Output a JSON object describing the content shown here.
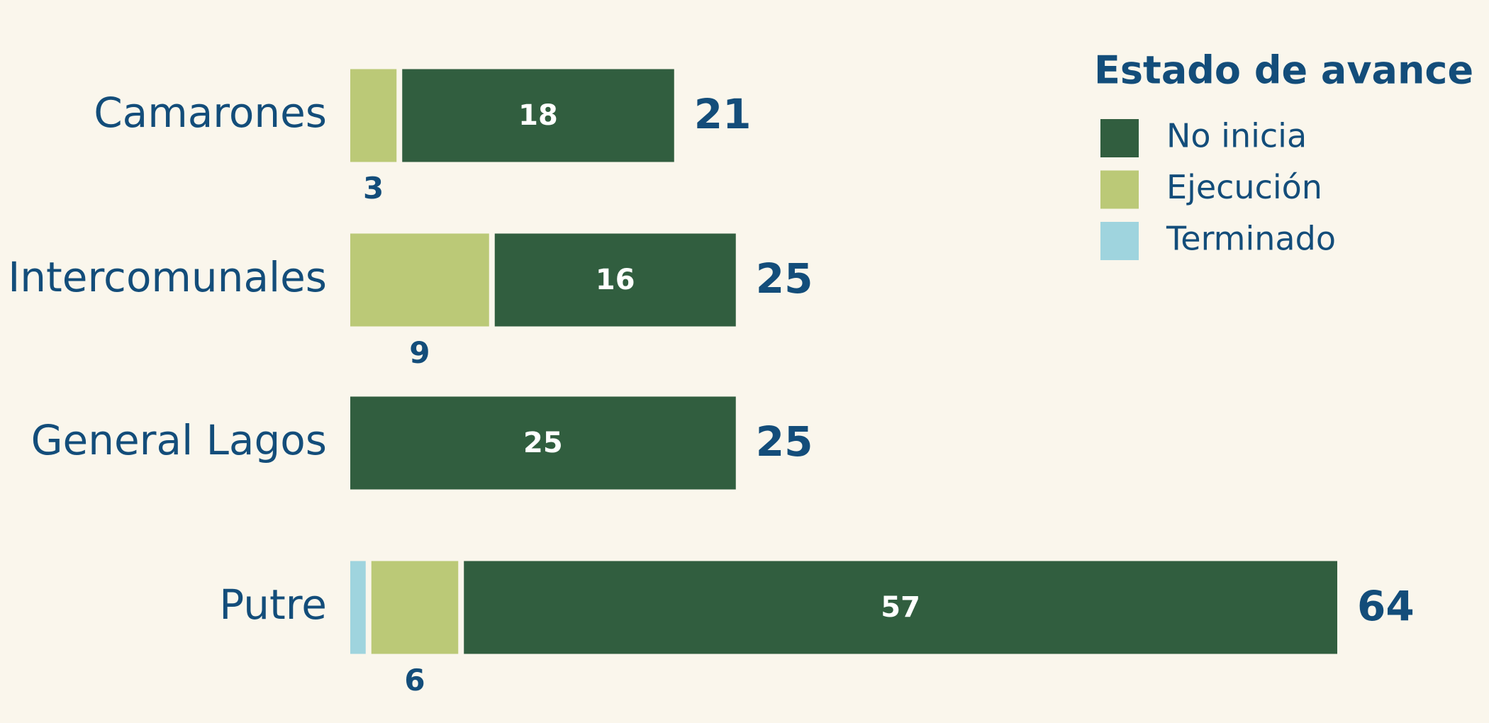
{
  "chart_data": {
    "type": "stacked_bar_horizontal",
    "categories": [
      "Camarones",
      "Intercomunales",
      "General Lagos",
      "Putre"
    ],
    "legend_title": "Estado de avance",
    "series": [
      {
        "name": "No inicia",
        "color": "#315e3f",
        "values": [
          18,
          16,
          25,
          57
        ],
        "label_position": "inside"
      },
      {
        "name": "Ejecución",
        "color": "#bbc977",
        "values": [
          3,
          9,
          0,
          6
        ],
        "label_position": "below"
      },
      {
        "name": "Terminado",
        "color": "#9fd4de",
        "values": [
          0,
          0,
          0,
          1
        ]
      }
    ],
    "totals": [
      21,
      25,
      25,
      64
    ],
    "legend": "top-right"
  }
}
